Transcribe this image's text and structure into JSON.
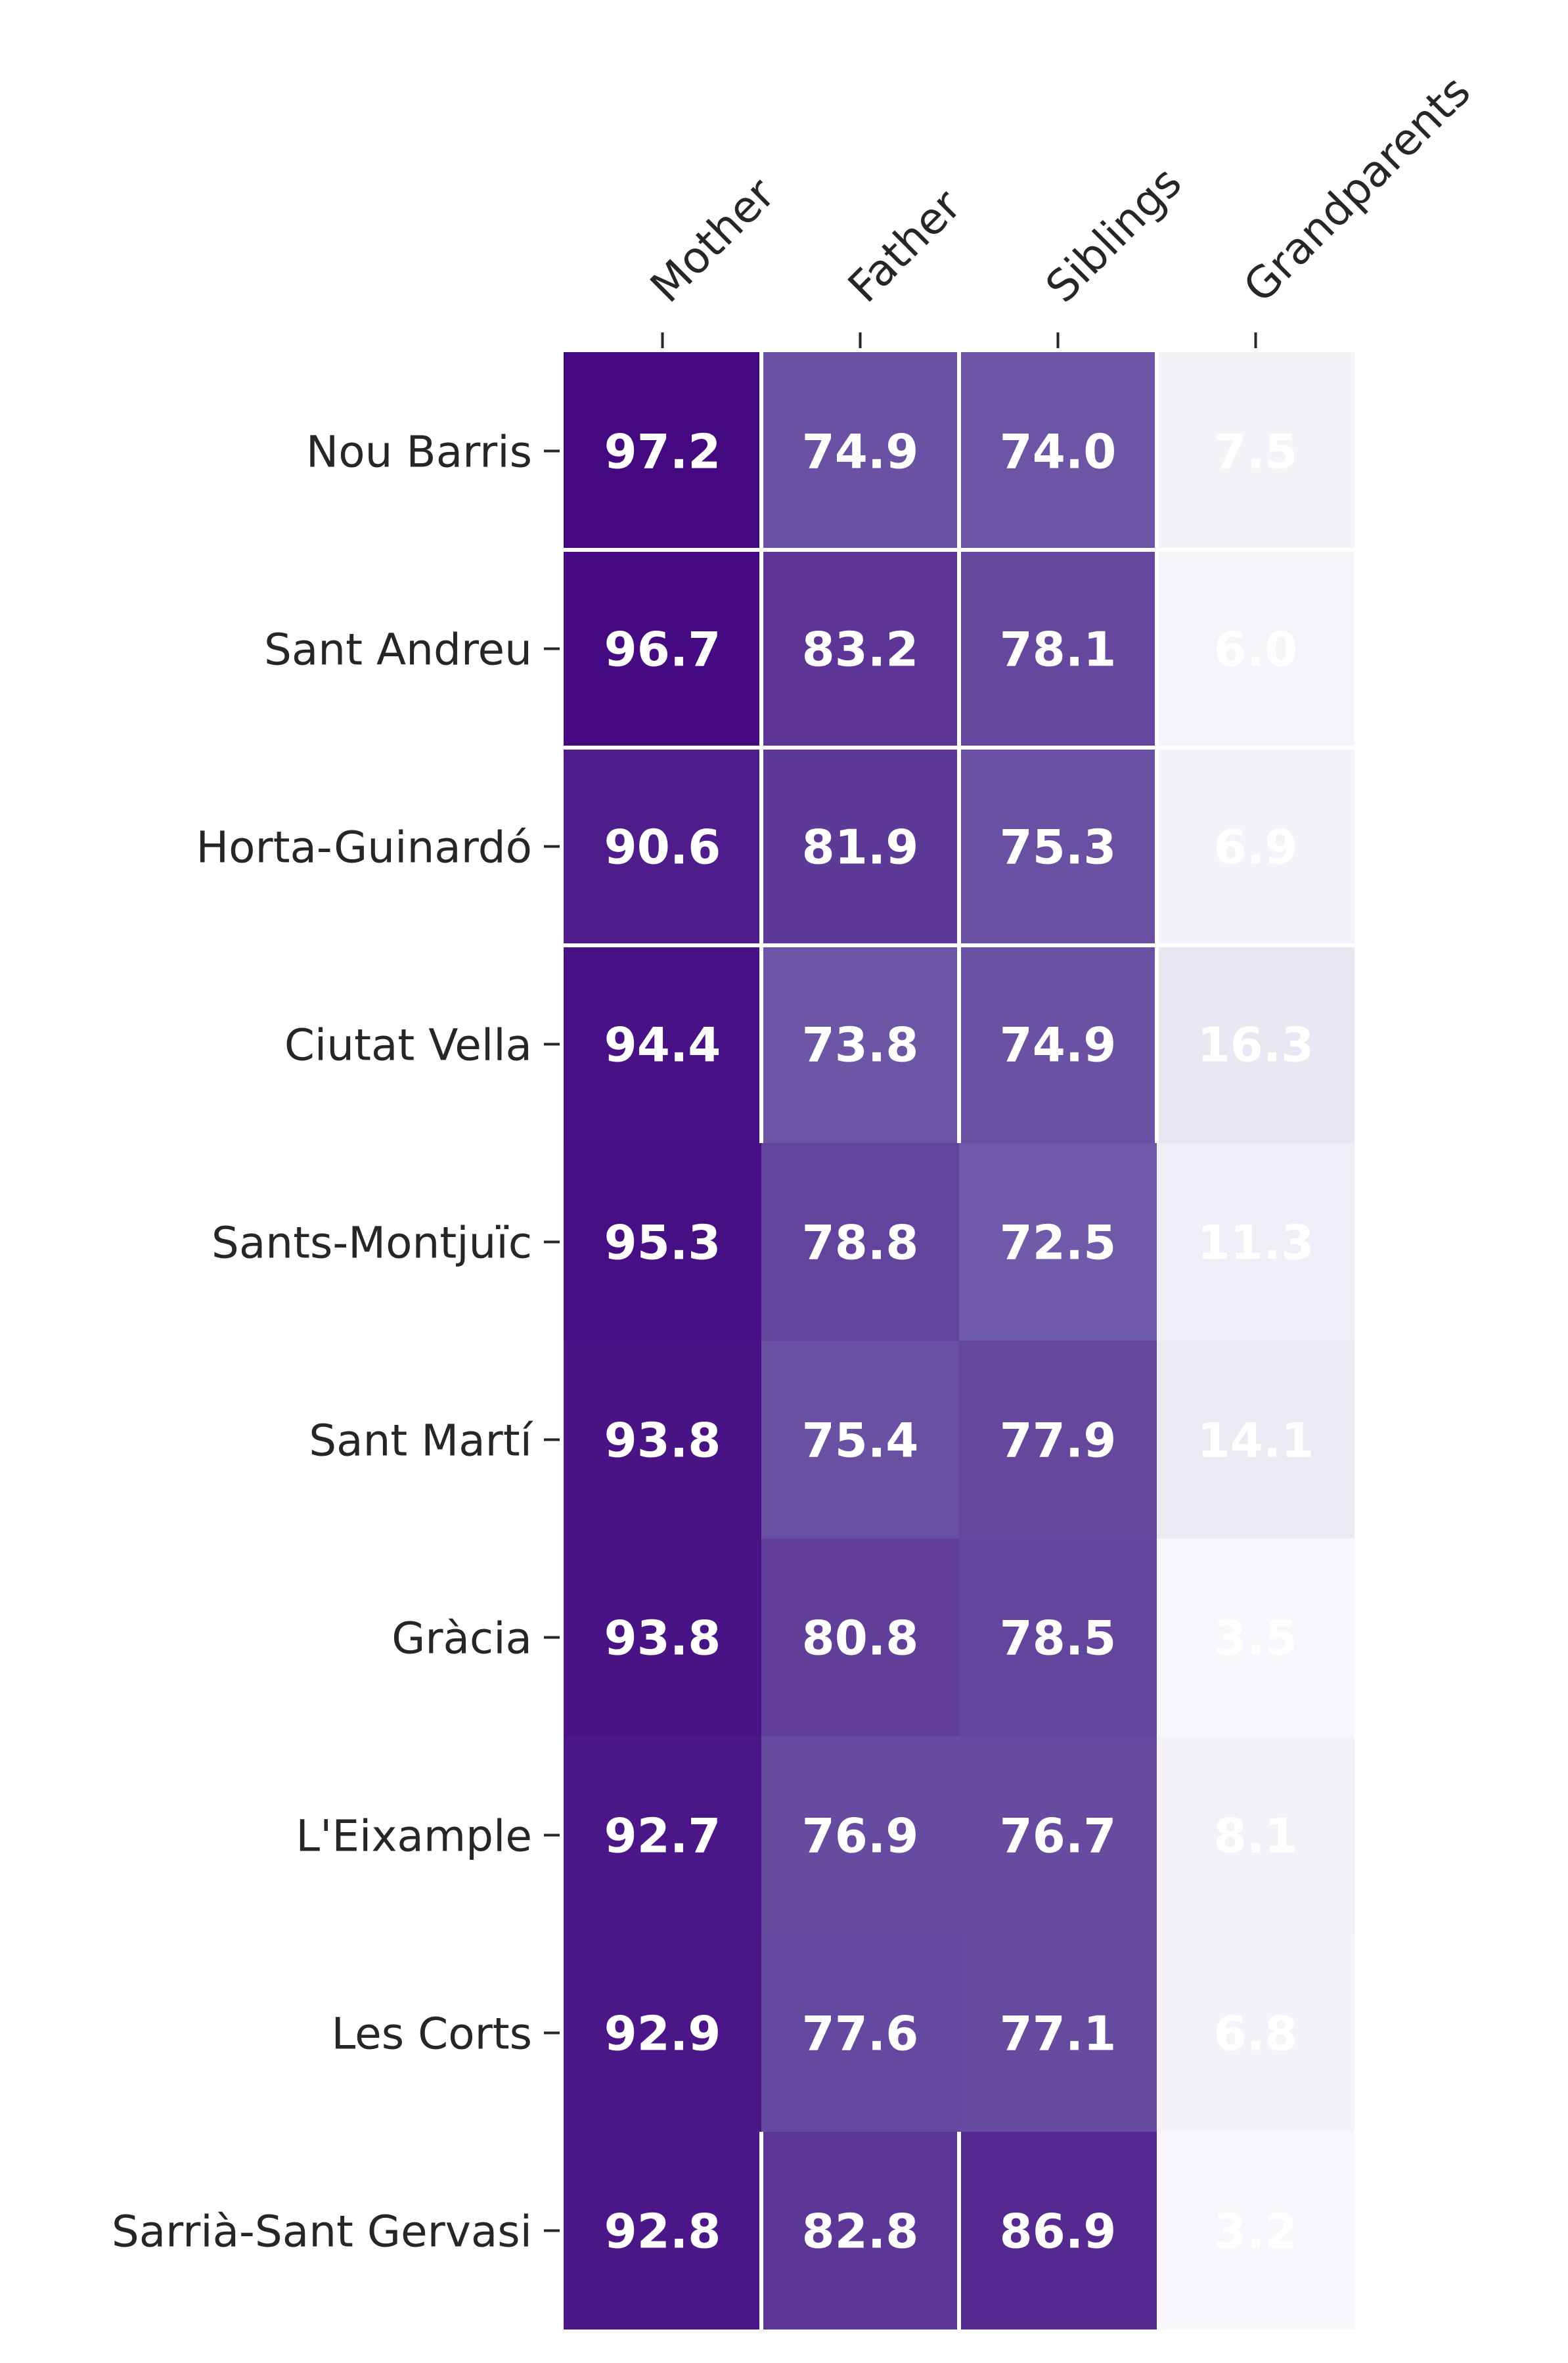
{
  "chart_data": {
    "type": "heatmap",
    "title": "",
    "xlabel": "",
    "ylabel": "",
    "columns": [
      "Mother",
      "Father",
      "Siblings",
      "Grandparents"
    ],
    "rows": [
      "Nou Barris",
      "Sant Andreu",
      "Horta-Guinardó",
      "Ciutat Vella",
      "Sants-Montjuïc",
      "Sant Martí",
      "Gràcia",
      "L'Eixample",
      "Les Corts",
      "Sarrià-Sant Gervasi"
    ],
    "values": [
      [
        97.2,
        74.9,
        74.0,
        7.5
      ],
      [
        96.7,
        83.2,
        78.1,
        6.0
      ],
      [
        90.6,
        81.9,
        75.3,
        6.9
      ],
      [
        94.4,
        73.8,
        74.9,
        16.3
      ],
      [
        95.3,
        78.8,
        72.5,
        11.3
      ],
      [
        93.8,
        75.4,
        77.9,
        14.1
      ],
      [
        93.8,
        80.8,
        78.5,
        3.5
      ],
      [
        92.7,
        76.9,
        76.7,
        8.1
      ],
      [
        92.9,
        77.6,
        77.1,
        6.8
      ],
      [
        92.8,
        82.8,
        86.9,
        3.2
      ]
    ],
    "colormap": "Purples",
    "value_range": [
      0,
      100
    ],
    "cell_text_color": "#ffffff",
    "separator_color": "#ffffff",
    "colorbar": false
  }
}
